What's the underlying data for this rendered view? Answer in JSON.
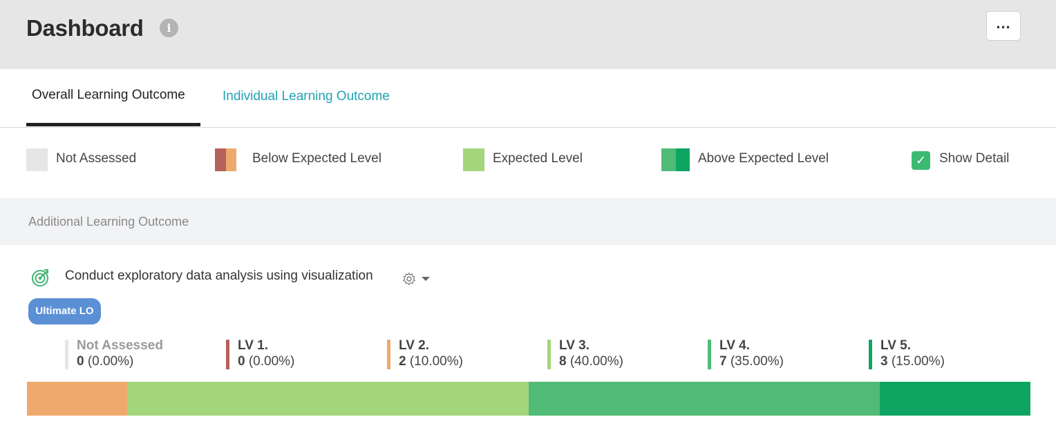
{
  "header": {
    "title": "Dashboard",
    "info_icon": "info-icon",
    "more_label": "..."
  },
  "tabs": [
    {
      "label": "Overall Learning Outcome",
      "active": true
    },
    {
      "label": "Individual Learning Outcome",
      "active": false
    }
  ],
  "legend": {
    "not_assessed": {
      "label": "Not Assessed",
      "colors": [
        "#e6e6e6"
      ]
    },
    "below": {
      "label": "Below Expected Level",
      "colors": [
        "#b5625a",
        "#efa96c"
      ]
    },
    "expected": {
      "label": "Expected Level",
      "colors": [
        "#a3d67c"
      ]
    },
    "above": {
      "label": "Above Expected Level",
      "colors": [
        "#4fbb76",
        "#0ea562"
      ]
    },
    "show_detail": {
      "label": "Show Detail",
      "checked": true,
      "check_glyph": "✓"
    }
  },
  "section": {
    "title": "Additional Learning Outcome"
  },
  "learning_outcome": {
    "icon": "target-icon",
    "title": "Conduct exploratory data analysis using visualization",
    "badge": "Ultimate LO"
  },
  "levels": [
    {
      "name": "Not Assessed",
      "count": "0",
      "percent": " (0.00%)",
      "color": "#e6e6e6",
      "fraction": 0.0
    },
    {
      "name": "LV 1.",
      "count": "0",
      "percent": " (0.00%)",
      "color": "#b5625a",
      "fraction": 0.0
    },
    {
      "name": "LV 2.",
      "count": "2",
      "percent": " (10.00%)",
      "color": "#efa96c",
      "fraction": 0.1
    },
    {
      "name": "LV 3.",
      "count": "8",
      "percent": " (40.00%)",
      "color": "#a3d67c",
      "fraction": 0.4
    },
    {
      "name": "LV 4.",
      "count": "7",
      "percent": " (35.00%)",
      "color": "#4fbb76",
      "fraction": 0.35
    },
    {
      "name": "LV 5.",
      "count": "3",
      "percent": " (15.00%)",
      "color": "#0ea562",
      "fraction": 0.15
    }
  ]
}
